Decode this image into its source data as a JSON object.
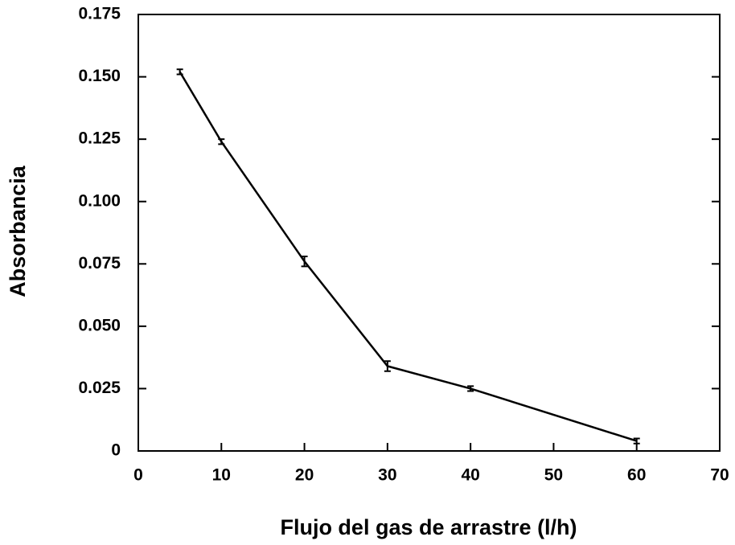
{
  "chart_data": {
    "type": "line",
    "xlabel": "Flujo del gas de arrastre (l/h)",
    "ylabel": "Absorbancia",
    "x": [
      5,
      10,
      20,
      30,
      40,
      60
    ],
    "values": [
      0.152,
      0.124,
      0.076,
      0.034,
      0.025,
      0.004
    ],
    "errors": [
      0.001,
      0.001,
      0.002,
      0.002,
      0.001,
      0.001
    ],
    "color": "#000000",
    "xlim": [
      0,
      70
    ],
    "xticks": [
      0,
      10,
      20,
      30,
      40,
      50,
      60,
      70
    ],
    "ylim": [
      0,
      0.175
    ],
    "yticks": [
      0,
      {
        "value": 0.025,
        "label": "0.025"
      },
      {
        "value": 0.05,
        "label": "0.050"
      },
      {
        "value": 0.075,
        "label": "0.075"
      },
      {
        "value": 0.1,
        "label": "0.100"
      },
      {
        "value": 0.125,
        "label": "0.125"
      },
      {
        "value": 0.15,
        "label": "0.150"
      },
      {
        "value": 0.175,
        "label": "0.175"
      }
    ]
  }
}
